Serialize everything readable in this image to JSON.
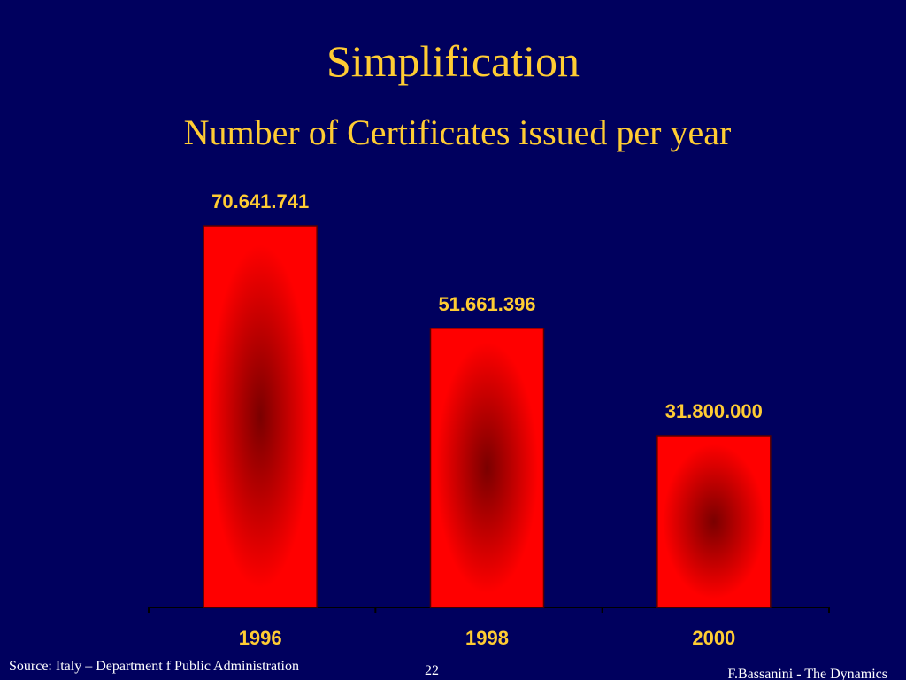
{
  "chart_data": {
    "type": "bar",
    "title": "Simplification",
    "subtitle": "Number of Certificates issued per year",
    "categories": [
      "1996",
      "1998",
      "2000"
    ],
    "values": [
      70641741,
      51661396,
      31800000
    ],
    "value_labels": [
      "70.641.741",
      "51.661.396",
      "31.800.000"
    ],
    "color": "#ff0000",
    "source": "Source: Italy – Department f Public Administration",
    "page_number": "22",
    "footer": "F.Bassanini - The Dynamics"
  }
}
